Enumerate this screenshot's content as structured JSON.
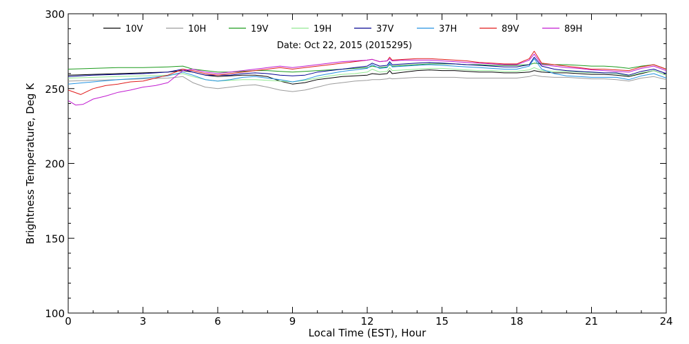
{
  "chart_data": {
    "type": "line",
    "subtitle": "Date: Oct 22, 2015 (2015295)",
    "xlabel": "Local Time (EST), Hour",
    "ylabel": "Brightness Temperature, Deg K",
    "xlim": [
      0,
      24
    ],
    "ylim": [
      100,
      300
    ],
    "xticks": [
      0,
      3,
      6,
      9,
      12,
      15,
      18,
      21,
      24
    ],
    "yticks": [
      100,
      150,
      200,
      250,
      300
    ],
    "x_tick_labels": [
      "0",
      "3",
      "6",
      "9",
      "12",
      "15",
      "18",
      "21",
      "24"
    ],
    "y_tick_labels": [
      "100",
      "150",
      "200",
      "250",
      "300"
    ],
    "grid": false,
    "legend_position": "top",
    "series": [
      {
        "name": "10V",
        "color": "#000000",
        "x": [
          0,
          1,
          2,
          3,
          4,
          4.6,
          5,
          5.5,
          6,
          6.5,
          7,
          7.5,
          8,
          8.5,
          9,
          9.5,
          10,
          10.5,
          11,
          11.5,
          12,
          12.2,
          12.5,
          12.8,
          12.9,
          13,
          13.5,
          14,
          14.5,
          15,
          15.5,
          16,
          16.5,
          17,
          17.5,
          18,
          18.5,
          18.7,
          19,
          19.5,
          20,
          20.5,
          21,
          21.5,
          22,
          22.5,
          23,
          23.5,
          24
        ],
        "y": [
          259,
          259.5,
          260,
          260.5,
          261,
          262,
          261,
          259,
          258,
          258.5,
          259,
          259,
          258,
          255,
          253,
          254,
          256,
          257,
          258,
          258.5,
          259,
          260,
          259.5,
          260,
          262,
          260,
          261,
          262,
          262.5,
          262,
          262,
          261.5,
          261,
          261,
          260.5,
          260.5,
          261,
          262,
          261,
          260.5,
          260.5,
          260,
          259.5,
          259.5,
          259,
          258,
          260,
          262,
          259
        ]
      },
      {
        "name": "10H",
        "color": "#9a9a9a",
        "x": [
          0,
          1,
          2,
          3,
          4,
          4.6,
          5,
          5.5,
          6,
          6.5,
          7,
          7.5,
          8,
          8.5,
          9,
          9.5,
          10,
          10.5,
          11,
          11.5,
          12,
          12.2,
          12.5,
          12.8,
          12.9,
          13,
          13.5,
          14,
          14.5,
          15,
          15.5,
          16,
          16.5,
          17,
          17.5,
          18,
          18.5,
          18.7,
          19,
          19.5,
          20,
          20.5,
          21,
          21.5,
          22,
          22.5,
          23,
          23.5,
          24
        ],
        "y": [
          255,
          255.5,
          256,
          256.5,
          257,
          258,
          254,
          251,
          250,
          251,
          252,
          252.5,
          251,
          249,
          248,
          249,
          251,
          253,
          254,
          255,
          255.5,
          256,
          256,
          256.5,
          257,
          256.5,
          257,
          257.5,
          257.5,
          257.5,
          257.5,
          257,
          257,
          257,
          257,
          257,
          258,
          259,
          258,
          257.5,
          257.5,
          257,
          256.5,
          256.5,
          256,
          255,
          257,
          258,
          256
        ]
      },
      {
        "name": "19V",
        "color": "#1a9a1a",
        "x": [
          0,
          1,
          2,
          3,
          4,
          4.6,
          5,
          5.5,
          6,
          6.5,
          7,
          7.5,
          8,
          8.5,
          9,
          9.5,
          10,
          10.5,
          11,
          11.5,
          12,
          12.2,
          12.5,
          12.8,
          12.9,
          13,
          13.5,
          14,
          14.5,
          15,
          15.5,
          16,
          16.5,
          17,
          17.5,
          18,
          18.5,
          18.7,
          19,
          19.5,
          20,
          20.5,
          21,
          21.5,
          22,
          22.5,
          23,
          23.5,
          24
        ],
        "y": [
          263,
          263.5,
          264,
          264,
          264.5,
          265,
          263,
          262,
          261,
          261,
          261.5,
          262,
          262,
          261.5,
          261,
          261.5,
          262,
          262.5,
          263,
          263.5,
          264,
          265,
          264,
          264.5,
          266,
          265,
          265.5,
          266,
          266.5,
          266.5,
          266.5,
          266,
          266,
          265.5,
          265.5,
          265.5,
          266,
          267,
          266.5,
          266,
          266,
          265.5,
          265,
          265,
          264.5,
          263.5,
          265,
          266,
          263
        ]
      },
      {
        "name": "19H",
        "color": "#90e890",
        "x": [
          0,
          1,
          2,
          3,
          4,
          4.6,
          5,
          5.5,
          6,
          6.5,
          7,
          7.5,
          8,
          8.5,
          9,
          9.5,
          10,
          10.5,
          11,
          11.5,
          12,
          12.2,
          12.5,
          12.8,
          12.9,
          13,
          13.5,
          14,
          14.5,
          15,
          15.5,
          16,
          16.5,
          17,
          17.5,
          18,
          18.5,
          18.7,
          19,
          19.5,
          20,
          20.5,
          21,
          21.5,
          22,
          22.5,
          23,
          23.5,
          24
        ],
        "y": [
          257,
          257.5,
          258,
          258.5,
          259,
          260,
          258,
          256,
          255,
          255.5,
          256,
          256,
          255.5,
          255,
          254.5,
          255.5,
          257,
          258.5,
          259.5,
          260,
          261,
          263,
          261,
          261.5,
          264,
          262,
          262.5,
          263,
          263.5,
          263.5,
          263,
          262.5,
          262,
          262,
          261.5,
          261.5,
          262.5,
          264,
          262,
          261.5,
          261.5,
          261,
          260.5,
          260.5,
          260,
          258.5,
          260.5,
          262,
          259
        ]
      },
      {
        "name": "37V",
        "color": "#000090",
        "x": [
          0,
          1,
          2,
          3,
          4,
          4.6,
          5,
          5.5,
          6,
          6.5,
          7,
          7.5,
          8,
          8.5,
          9,
          9.5,
          10,
          10.5,
          11,
          11.5,
          12,
          12.2,
          12.5,
          12.8,
          12.9,
          13,
          13.5,
          14,
          14.5,
          15,
          15.5,
          16,
          16.5,
          17,
          17.5,
          18,
          18.5,
          18.7,
          19,
          19.5,
          20,
          20.5,
          21,
          21.5,
          22,
          22.5,
          23,
          23.5,
          24
        ],
        "y": [
          258,
          259,
          259.5,
          260,
          261,
          263,
          261,
          259,
          259,
          259,
          260,
          260.5,
          260,
          259,
          258.5,
          259,
          261,
          262,
          263,
          264,
          265,
          267,
          265,
          265.5,
          268,
          266,
          266.5,
          267,
          267.5,
          267,
          266.5,
          266,
          265.5,
          265,
          264.5,
          264.5,
          266,
          271,
          265,
          263,
          262,
          261.5,
          261,
          260.5,
          260.5,
          259,
          261.5,
          263,
          260
        ]
      },
      {
        "name": "37H",
        "color": "#2090e0",
        "x": [
          0,
          1,
          2,
          3,
          4,
          4.6,
          5,
          5.5,
          6,
          6.5,
          7,
          7.5,
          8,
          8.5,
          9,
          9.5,
          10,
          10.5,
          11,
          11.5,
          12,
          12.2,
          12.5,
          12.8,
          12.9,
          13,
          13.5,
          14,
          14.5,
          15,
          15.5,
          16,
          16.5,
          17,
          17.5,
          18,
          18.5,
          18.7,
          19,
          19.5,
          20,
          20.5,
          21,
          21.5,
          22,
          22.5,
          23,
          23.5,
          24
        ],
        "y": [
          253,
          254.5,
          256,
          257,
          258.5,
          261,
          259,
          256,
          255,
          256,
          257.5,
          258,
          257,
          256,
          254.5,
          256,
          258.5,
          260,
          261.5,
          262.5,
          263.5,
          266,
          263.5,
          264,
          267,
          264.5,
          265,
          265.5,
          266,
          265.5,
          265,
          264.5,
          264,
          263.5,
          263,
          263,
          265,
          270,
          263,
          260,
          258.5,
          258,
          257.5,
          257.5,
          257.5,
          256,
          258.5,
          260,
          257
        ]
      },
      {
        "name": "89V",
        "color": "#e01818",
        "x": [
          0,
          0.5,
          1,
          1.5,
          2,
          2.5,
          3,
          3.5,
          4,
          4.6,
          5,
          5.5,
          6,
          6.5,
          7,
          7.5,
          8,
          8.5,
          9,
          9.5,
          10,
          10.5,
          11,
          11.5,
          12,
          12.2,
          12.5,
          12.8,
          12.9,
          13,
          13.5,
          14,
          14.5,
          15,
          15.5,
          16,
          16.5,
          17,
          17.5,
          18,
          18.5,
          18.7,
          19,
          19.5,
          20,
          20.5,
          21,
          21.5,
          22,
          22.5,
          23,
          23.5,
          24
        ],
        "y": [
          249,
          246,
          250,
          252,
          253,
          254.5,
          255,
          257,
          259,
          263,
          262,
          260,
          259,
          260,
          261,
          262,
          263,
          264,
          263,
          264,
          265,
          266,
          267,
          268,
          269,
          269.5,
          268,
          268.5,
          271,
          269,
          269.5,
          270,
          270,
          269.5,
          269,
          268.5,
          267.5,
          267,
          266.5,
          266.5,
          270,
          275,
          267,
          266,
          265,
          264,
          263,
          263,
          262.5,
          262,
          264.5,
          266,
          263
        ]
      },
      {
        "name": "89H",
        "color": "#c018d0",
        "x": [
          0,
          0.3,
          0.6,
          1,
          1.5,
          2,
          2.5,
          3,
          3.5,
          4,
          4.6,
          5,
          5.5,
          6,
          6.5,
          7,
          7.5,
          8,
          8.5,
          9,
          9.5,
          10,
          10.5,
          11,
          11.5,
          12,
          12.2,
          12.5,
          12.8,
          12.9,
          13,
          13.5,
          14,
          14.5,
          15,
          15.5,
          16,
          16.5,
          17,
          17.5,
          18,
          18.5,
          18.7,
          19,
          19.5,
          20,
          20.5,
          21,
          21.5,
          22,
          22.5,
          23,
          23.5,
          24
        ],
        "y": [
          242,
          239,
          239.5,
          243,
          245,
          247.5,
          249,
          251,
          252,
          254,
          262,
          263,
          261,
          260,
          261,
          262,
          263,
          264,
          265,
          264,
          265,
          266,
          267,
          268,
          268.5,
          269,
          269.5,
          268,
          268.5,
          270,
          268.5,
          269,
          269,
          269,
          268.5,
          268,
          267.5,
          267,
          266.5,
          266,
          266,
          269,
          273,
          266,
          265,
          264,
          263.5,
          262.5,
          262,
          261.5,
          261,
          263.5,
          265,
          262
        ]
      }
    ]
  }
}
